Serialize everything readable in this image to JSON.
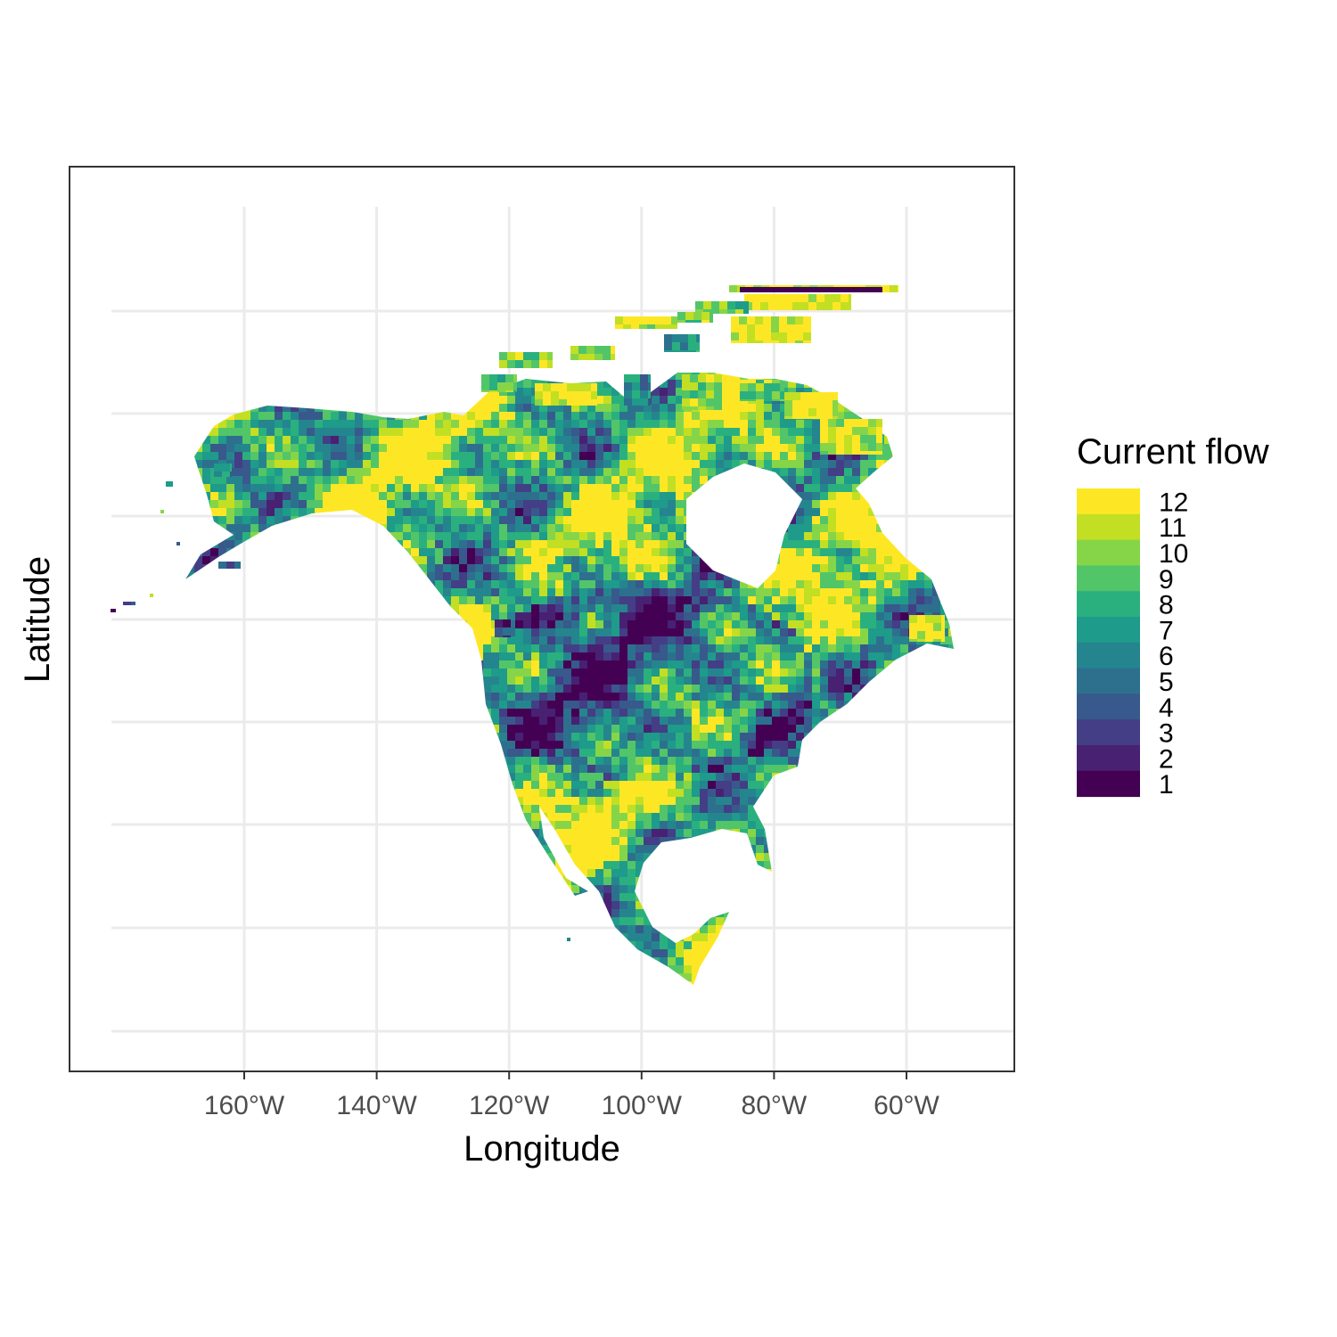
{
  "chart_data": {
    "type": "heatmap",
    "title": "",
    "xlabel": "Longitude",
    "ylabel": "Latitude",
    "x_ticks": [
      {
        "value": -160,
        "label": "160°W"
      },
      {
        "value": -140,
        "label": "140°W"
      },
      {
        "value": -120,
        "label": "120°W"
      },
      {
        "value": -100,
        "label": "100°W"
      },
      {
        "value": -80,
        "label": "80°W"
      },
      {
        "value": -60,
        "label": "60°W"
      }
    ],
    "xlim": [
      -186,
      -43
    ],
    "y_tick_labels_shown": false,
    "grid": true,
    "legend": {
      "title": "Current flow",
      "placement": "right",
      "levels": [
        {
          "value": 12,
          "label": "12",
          "color": "#fde725"
        },
        {
          "value": 11,
          "label": "11",
          "color": "#c2df23"
        },
        {
          "value": 10,
          "label": "10",
          "color": "#86d549"
        },
        {
          "value": 9,
          "label": "9",
          "color": "#52c569"
        },
        {
          "value": 8,
          "label": "8",
          "color": "#2ab07f"
        },
        {
          "value": 7,
          "label": "7",
          "color": "#1e9b8a"
        },
        {
          "value": 6,
          "label": "6",
          "color": "#25858e"
        },
        {
          "value": 5,
          "label": "5",
          "color": "#2d708e"
        },
        {
          "value": 4,
          "label": "4",
          "color": "#38598c"
        },
        {
          "value": 3,
          "label": "3",
          "color": "#433e85"
        },
        {
          "value": 2,
          "label": "2",
          "color": "#482173"
        },
        {
          "value": 1,
          "label": "1",
          "color": "#440154"
        }
      ]
    },
    "colormap": "viridis",
    "region": "North America"
  }
}
